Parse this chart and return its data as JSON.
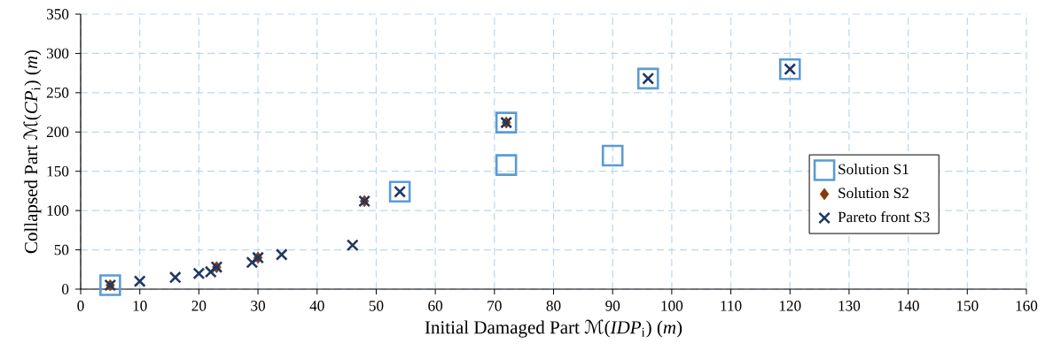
{
  "chart_data": {
    "type": "scatter",
    "xlabel": "Initial Damaged Part ℳ(*IDP*$_{i}$) (*m*)",
    "ylabel": "Collapsed Part ℳ(*CP*$_{i}$) (*m*)",
    "xlim": [
      0,
      160
    ],
    "xticks": [
      0,
      10,
      20,
      30,
      40,
      50,
      60,
      70,
      80,
      90,
      100,
      110,
      120,
      130,
      140,
      150,
      160
    ],
    "ylim": [
      0,
      350
    ],
    "yticks": [
      0,
      50,
      100,
      150,
      200,
      250,
      300,
      350
    ],
    "grid": true,
    "legend": "right",
    "series": [
      {
        "name": "Solution S1",
        "color": "#5b9bd5",
        "marker": "square",
        "x": [
          5,
          54,
          72,
          72,
          90,
          96,
          120
        ],
        "values": [
          5,
          124,
          212,
          158,
          170,
          268,
          280
        ]
      },
      {
        "name": "Solution S2",
        "color": "#843c0c",
        "marker": "diamond",
        "x": [
          5,
          23,
          30,
          48,
          72
        ],
        "values": [
          5,
          28,
          40,
          112,
          212
        ]
      },
      {
        "name": "Pareto front S3",
        "color": "#1f3864",
        "marker": "cross",
        "x": [
          5,
          10,
          16,
          20,
          22,
          23,
          29,
          30,
          34,
          46,
          48,
          54,
          72,
          96,
          120
        ],
        "values": [
          5,
          10,
          15,
          20,
          22,
          28,
          34,
          40,
          44,
          56,
          112,
          124,
          212,
          268,
          280
        ]
      }
    ]
  }
}
